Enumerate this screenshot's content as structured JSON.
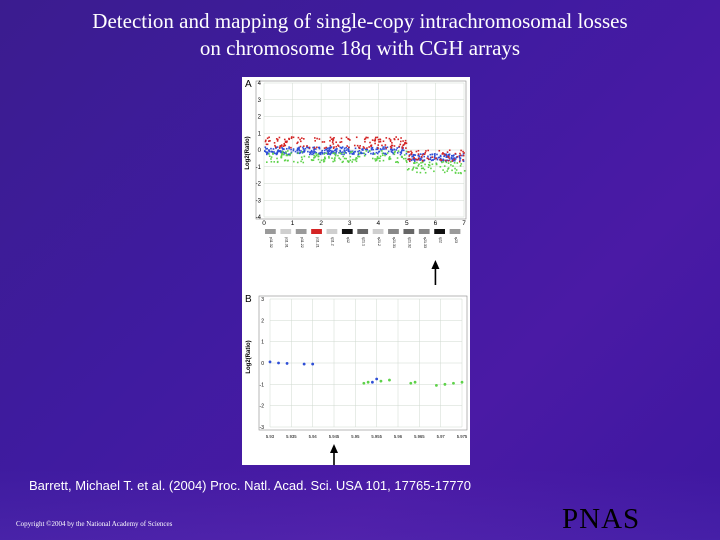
{
  "slide": {
    "title_line1": "Detection and mapping of single-copy intrachromosomal losses",
    "title_line2": "on chromosome 18q with CGH arrays",
    "citation": "Barrett, Michael T. et al. (2004) Proc. Natl. Acad. Sci. USA 101, 17765-17770",
    "copyright": "Copyright ©2004 by the National Academy of Sciences",
    "publisher_logo": "PNAS"
  },
  "colors": {
    "background": "#3f1ba0",
    "series_blue": "#2f4fd6",
    "series_red": "#d42424",
    "series_green": "#5ed24a",
    "grid": "#cfd8cf"
  },
  "chart_data": [
    {
      "type": "scatter",
      "panel": "A",
      "ylabel": "Log2(Ratio)",
      "ylim": [
        -4,
        4
      ],
      "y_ticks": [
        "4",
        "3",
        "2",
        "1",
        "0",
        "-1",
        "-2",
        "-3",
        "-4"
      ],
      "xlim": [
        0,
        7
      ],
      "x_ticks": [
        "0",
        "1",
        "2",
        "3",
        "4",
        "5",
        "6",
        "7"
      ],
      "cytobands": [
        "p11.32",
        "p11.31",
        "p11.22",
        "p11.21",
        "q11.2",
        "q12",
        "q21.1",
        "q21.2",
        "q21.31",
        "q21.32",
        "q21.33",
        "q22",
        "q23"
      ],
      "series": [
        {
          "color": "blue",
          "segments": [
            {
              "x_start": 0.0,
              "x_end": 5.0,
              "y": 0.0
            },
            {
              "x_start": 5.0,
              "x_end": 7.0,
              "y": -0.4
            }
          ]
        },
        {
          "color": "red",
          "segments": [
            {
              "x_start": 0.0,
              "x_end": 5.0,
              "y": 0.5
            },
            {
              "x_start": 5.0,
              "x_end": 7.0,
              "y": -0.3
            }
          ]
        },
        {
          "color": "green",
          "segments": [
            {
              "x_start": 0.0,
              "x_end": 5.0,
              "y": -0.35
            },
            {
              "x_start": 5.0,
              "x_end": 7.0,
              "y": -1.0
            }
          ]
        }
      ],
      "arrow_at_x": 6.0
    },
    {
      "type": "scatter",
      "panel": "B",
      "ylabel": "Log2(Ratio)",
      "ylim": [
        -3,
        3
      ],
      "y_ticks": [
        "3",
        "2",
        "1",
        "0",
        "-1",
        "-2",
        "-3"
      ],
      "x_ticks": [
        "5.93",
        "5.935",
        "5.94",
        "5.945",
        "5.95",
        "5.955",
        "5.96",
        "5.965",
        "5.97",
        "5.975"
      ],
      "series": [
        {
          "color": "blue",
          "points": [
            [
              5.93,
              0.05
            ],
            [
              5.932,
              0.0
            ],
            [
              5.934,
              -0.02
            ],
            [
              5.938,
              -0.05
            ],
            [
              5.94,
              -0.05
            ],
            [
              5.954,
              -0.9
            ],
            [
              5.955,
              -0.75
            ]
          ]
        },
        {
          "color": "green",
          "points": [
            [
              5.952,
              -0.95
            ],
            [
              5.953,
              -0.9
            ],
            [
              5.956,
              -0.85
            ],
            [
              5.958,
              -0.8
            ],
            [
              5.963,
              -0.95
            ],
            [
              5.964,
              -0.9
            ],
            [
              5.969,
              -1.05
            ],
            [
              5.971,
              -1.0
            ],
            [
              5.973,
              -0.95
            ],
            [
              5.975,
              -0.9
            ]
          ]
        }
      ],
      "arrow_at_x": 5.945
    }
  ]
}
